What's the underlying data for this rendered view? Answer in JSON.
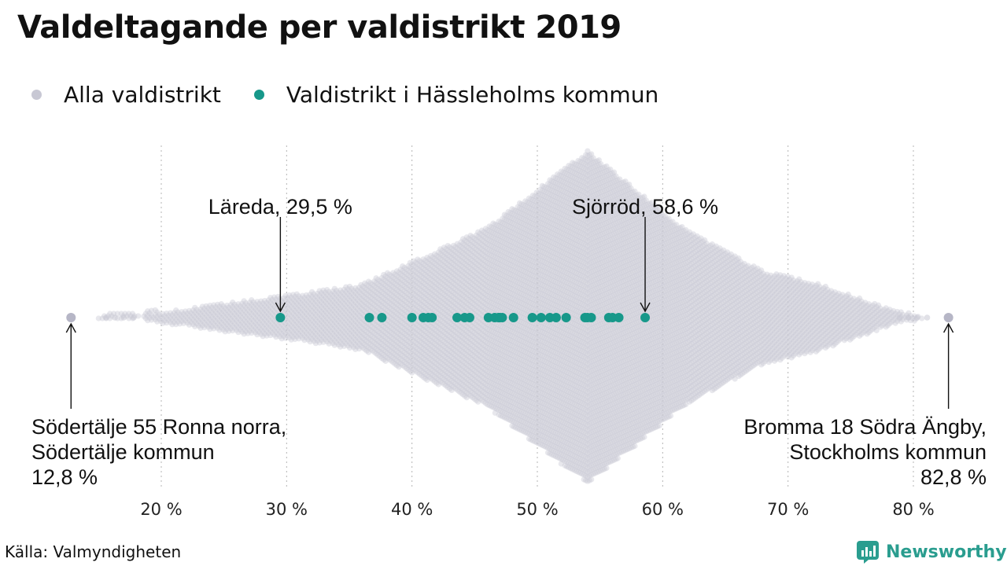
{
  "title": "Valdeltagande per valdistrikt 2019",
  "legend": [
    {
      "label": "Alla valdistrikt",
      "color": "#c8c8d4"
    },
    {
      "label": "Valdistrikt i Hässleholms kommun",
      "color": "#17988a"
    }
  ],
  "source": "Källa: Valmyndigheten",
  "brand": "Newsworthy",
  "chart_data": {
    "type": "scatter",
    "subtype": "beeswarm",
    "xlim": [
      10,
      85
    ],
    "xticks": [
      20,
      30,
      40,
      50,
      60,
      70,
      80
    ],
    "tick_suffix": " %",
    "grid": "vertical dotted",
    "series": [
      {
        "name": "Alla valdistrikt",
        "color": "#c8c8d4",
        "distribution": "approx. 6300 districts, peak density near 54 %",
        "min": 12.8,
        "max": 82.8
      },
      {
        "name": "Valdistrikt i Hässleholms kommun",
        "color": "#17988a",
        "values": [
          29.5,
          36.6,
          37.6,
          40.0,
          40.9,
          41.3,
          41.6,
          43.6,
          44.2,
          44.6,
          46.1,
          46.6,
          46.9,
          47.0,
          47.2,
          48.1,
          49.6,
          50.3,
          51.0,
          51.5,
          52.3,
          53.8,
          54.0,
          54.3,
          55.7,
          56.0,
          56.5,
          58.6
        ]
      }
    ],
    "annotations": [
      {
        "value": 29.5,
        "lines": [
          "Läreda, 29,5 %"
        ],
        "position": "above",
        "align": "center"
      },
      {
        "value": 58.6,
        "lines": [
          "Sjörröd, 58,6 %"
        ],
        "position": "above",
        "align": "center"
      },
      {
        "value": 12.8,
        "lines": [
          "Södertälje 55 Ronna norra,",
          "Södertälje kommun",
          "12,8 %"
        ],
        "position": "below",
        "align": "left"
      },
      {
        "value": 82.8,
        "lines": [
          "Bromma 18 Södra Ängby,",
          "Stockholms kommun",
          "82,8 %"
        ],
        "position": "below",
        "align": "right"
      }
    ]
  }
}
